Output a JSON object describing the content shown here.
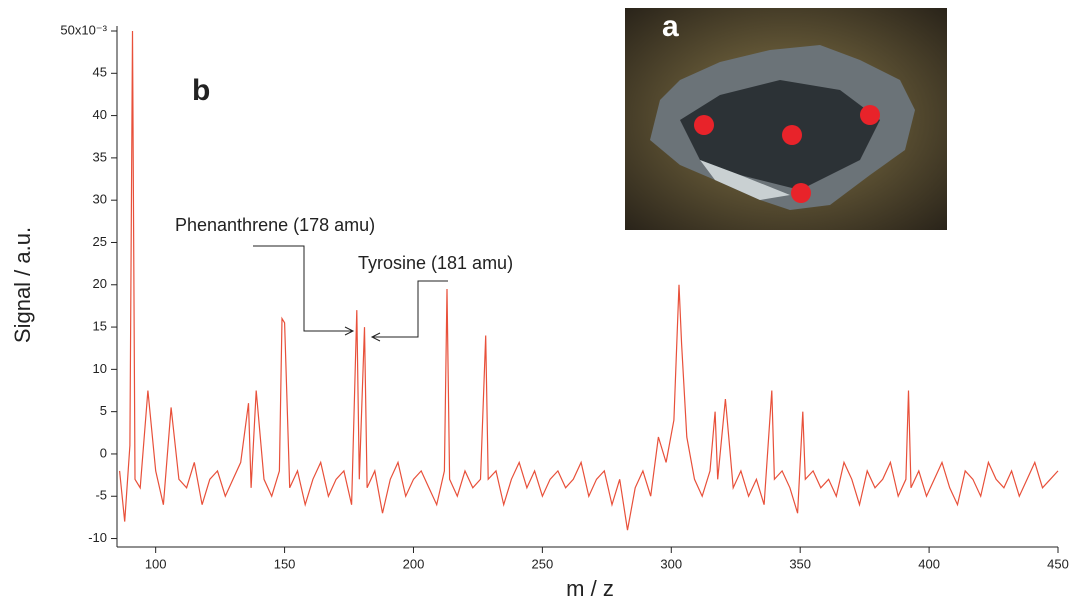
{
  "chart_data": {
    "type": "line",
    "panel_label": "b",
    "inset_label": "a",
    "xlabel": "m / z",
    "ylabel": "Signal / a.u.",
    "annotations": [
      "Phenanthrene (178 amu)",
      "Tyrosine (181 amu)"
    ],
    "x": [
      86,
      88,
      90,
      91,
      92,
      94,
      97,
      100,
      103,
      106,
      109,
      112,
      115,
      118,
      121,
      124,
      127,
      130,
      133,
      136,
      137,
      139,
      142,
      145,
      148,
      149,
      150,
      152,
      155,
      158,
      161,
      164,
      167,
      170,
      173,
      176,
      178,
      179,
      181,
      182,
      185,
      188,
      191,
      194,
      197,
      200,
      203,
      206,
      209,
      212,
      213,
      214,
      217,
      220,
      223,
      226,
      228,
      229,
      232,
      235,
      238,
      241,
      244,
      247,
      250,
      253,
      256,
      259,
      262,
      265,
      268,
      271,
      274,
      277,
      280,
      283,
      286,
      289,
      292,
      295,
      298,
      301,
      303,
      304,
      306,
      309,
      312,
      315,
      317,
      318,
      321,
      324,
      327,
      330,
      333,
      336,
      339,
      340,
      343,
      346,
      349,
      351,
      352,
      355,
      358,
      361,
      364,
      367,
      370,
      373,
      376,
      379,
      382,
      385,
      388,
      391,
      392,
      393,
      396,
      399,
      402,
      405,
      408,
      411,
      414,
      417,
      420,
      423,
      426,
      429,
      432,
      435,
      438,
      441,
      444,
      447,
      450
    ],
    "series": [
      {
        "color": "#e8503a",
        "values": [
          -2,
          -8,
          1,
          50,
          -3,
          -4,
          7.5,
          -2,
          -6,
          5.5,
          -3,
          -4,
          -1,
          -6,
          -3,
          -2,
          -5,
          -3,
          -1,
          6,
          -4,
          7.5,
          -3,
          -5,
          -2,
          16,
          15.5,
          -4,
          -2,
          -6,
          -3,
          -1,
          -5,
          -3,
          -2,
          -6,
          17,
          -3,
          15,
          -4,
          -2,
          -7,
          -3,
          -1,
          -5,
          -3,
          -2,
          -4,
          -6,
          -2,
          19.5,
          -3,
          -5,
          -2,
          -4,
          -3,
          14,
          -3,
          -2,
          -6,
          -3,
          -1,
          -4,
          -2,
          -5,
          -3,
          -2,
          -4,
          -3,
          -1,
          -5,
          -3,
          -2,
          -6,
          -3,
          -9,
          -4,
          -2,
          -5,
          2,
          -1,
          4,
          20,
          13,
          2,
          -3,
          -5,
          -2,
          5,
          -3,
          6.5,
          -4,
          -2,
          -5,
          -3,
          -6,
          7.5,
          -3,
          -2,
          -4,
          -7,
          5,
          -3,
          -2,
          -4,
          -3,
          -5,
          -1,
          -3,
          -6,
          -2,
          -4,
          -3,
          -1,
          -5,
          -3,
          7.5,
          -4,
          -2,
          -5,
          -3,
          -1,
          -4,
          -6,
          -2,
          -3,
          -5,
          -1,
          -3,
          -4,
          -2,
          -5,
          -3,
          -1,
          -4,
          -3,
          -2
        ]
      }
    ],
    "xlim": [
      85,
      450
    ],
    "xticks": [
      100,
      150,
      200,
      250,
      300,
      350,
      400,
      450
    ],
    "ylim": [
      -11,
      50
    ],
    "yticks": [
      -10,
      -5,
      0,
      5,
      10,
      15,
      20,
      25,
      30,
      35,
      40,
      {
        "value": 45,
        "label": "45"
      },
      {
        "value": 50,
        "label": "50x10⁻³"
      }
    ]
  }
}
